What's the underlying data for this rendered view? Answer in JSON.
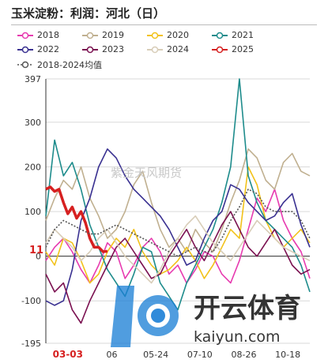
{
  "title": "玉米淀粉：利润：河北（日）",
  "legend_items": [
    "2018",
    "2019",
    "2020",
    "2021",
    "2022",
    "2023",
    "2024",
    "2025",
    "2018-2024均值"
  ],
  "watermark_center": "紫金天风期货",
  "watermark_logo": {
    "brand_cn": "开云体育",
    "brand_url": "kaiyun.com"
  },
  "latest_value_label": "11",
  "chart_data": {
    "type": "line",
    "title": "玉米淀粉：利润：河北（日）",
    "xlabel": "",
    "ylabel": "",
    "ylim": [
      -195,
      397
    ],
    "yticks": [
      397,
      300,
      200,
      100,
      0,
      -100,
      -195
    ],
    "xticks": [
      "03-03",
      "06",
      "05-24",
      "07-10",
      "08-26",
      "10-18"
    ],
    "xtick_highlight": "03-03",
    "xlim": [
      0,
      300
    ],
    "grid": "horizontal",
    "legend_position": "top",
    "series": [
      {
        "name": "2018",
        "color": "#e73bb0",
        "dashed": false,
        "x": [
          0,
          10,
          20,
          30,
          40,
          50,
          60,
          70,
          80,
          90,
          100,
          110,
          120,
          130,
          140,
          150,
          160,
          170,
          180,
          190,
          200,
          210,
          220,
          230,
          240,
          250,
          260,
          270,
          280,
          290,
          300
        ],
        "y": [
          -10,
          20,
          40,
          10,
          -30,
          -60,
          -20,
          30,
          10,
          -50,
          -20,
          20,
          40,
          10,
          -40,
          -20,
          -60,
          -30,
          10,
          0,
          -40,
          -60,
          -10,
          60,
          130,
          100,
          150,
          80,
          40,
          10,
          -50
        ]
      },
      {
        "name": "2019",
        "color": "#c0b090",
        "dashed": false,
        "x": [
          0,
          10,
          20,
          30,
          40,
          50,
          60,
          70,
          80,
          90,
          100,
          110,
          120,
          130,
          140,
          150,
          160,
          170,
          180,
          190,
          200,
          210,
          220,
          230,
          240,
          250,
          260,
          270,
          280,
          290,
          300
        ],
        "y": [
          80,
          130,
          170,
          150,
          200,
          130,
          90,
          40,
          60,
          100,
          160,
          190,
          120,
          60,
          20,
          40,
          10,
          60,
          30,
          10,
          60,
          120,
          170,
          240,
          220,
          170,
          150,
          210,
          230,
          190,
          180
        ]
      },
      {
        "name": "2020",
        "color": "#f2c21a",
        "dashed": false,
        "x": [
          0,
          10,
          20,
          30,
          40,
          50,
          60,
          70,
          80,
          90,
          100,
          110,
          120,
          130,
          140,
          150,
          160,
          170,
          180,
          190,
          200,
          210,
          220,
          230,
          240,
          250,
          260,
          270,
          280,
          290,
          300
        ],
        "y": [
          10,
          -20,
          40,
          30,
          -10,
          -60,
          -40,
          10,
          40,
          20,
          60,
          10,
          -20,
          -40,
          -30,
          -10,
          20,
          -10,
          -50,
          -20,
          20,
          60,
          40,
          200,
          160,
          80,
          40,
          20,
          40,
          60,
          30
        ]
      },
      {
        "name": "2021",
        "color": "#1e8c8c",
        "dashed": false,
        "x": [
          0,
          10,
          20,
          30,
          40,
          50,
          60,
          70,
          80,
          90,
          100,
          110,
          120,
          130,
          140,
          150,
          160,
          170,
          180,
          190,
          200,
          210,
          220,
          230,
          240,
          250,
          260,
          270,
          280,
          290,
          300
        ],
        "y": [
          90,
          260,
          180,
          210,
          150,
          70,
          20,
          -30,
          -60,
          -90,
          -40,
          20,
          10,
          -60,
          -90,
          -120,
          -60,
          -20,
          20,
          60,
          120,
          200,
          397,
          180,
          120,
          80,
          60,
          40,
          20,
          -20,
          -80
        ]
      },
      {
        "name": "2022",
        "color": "#3a3191",
        "dashed": false,
        "x": [
          0,
          10,
          20,
          30,
          40,
          50,
          60,
          70,
          80,
          90,
          100,
          110,
          120,
          130,
          140,
          150,
          160,
          170,
          180,
          190,
          200,
          210,
          220,
          230,
          240,
          250,
          260,
          270,
          280,
          290,
          300
        ],
        "y": [
          -100,
          -110,
          -100,
          -30,
          80,
          130,
          200,
          240,
          220,
          180,
          150,
          130,
          110,
          90,
          60,
          20,
          -20,
          -10,
          40,
          80,
          100,
          160,
          150,
          120,
          100,
          80,
          90,
          120,
          140,
          70,
          20
        ]
      },
      {
        "name": "2023",
        "color": "#7a1050",
        "dashed": false,
        "x": [
          0,
          10,
          20,
          30,
          40,
          50,
          60,
          70,
          80,
          90,
          100,
          110,
          120,
          130,
          140,
          150,
          160,
          170,
          180,
          190,
          200,
          210,
          220,
          230,
          240,
          250,
          260,
          270,
          280,
          290,
          300
        ],
        "y": [
          -40,
          -80,
          -60,
          -120,
          -150,
          -100,
          -60,
          -20,
          20,
          40,
          10,
          -20,
          -50,
          -40,
          0,
          30,
          60,
          20,
          -10,
          30,
          70,
          100,
          60,
          20,
          0,
          30,
          60,
          20,
          -20,
          -40,
          -30
        ]
      },
      {
        "name": "2024",
        "color": "#d8cdb8",
        "dashed": false,
        "x": [
          0,
          10,
          20,
          30,
          40,
          50,
          60,
          70,
          80,
          90,
          100,
          110,
          120,
          130,
          140,
          150,
          160,
          170,
          180,
          190,
          200,
          210,
          220,
          230,
          240,
          250,
          260,
          270,
          280,
          290,
          300
        ],
        "y": [
          30,
          60,
          40,
          20,
          -10,
          10,
          40,
          60,
          30,
          0,
          -20,
          -40,
          -60,
          -30,
          10,
          40,
          70,
          90,
          60,
          30,
          10,
          -10,
          20,
          50,
          80,
          60,
          40,
          20,
          10,
          0,
          -10
        ]
      },
      {
        "name": "2025",
        "color": "#d62020",
        "dashed": false,
        "x": [
          0,
          5,
          10,
          15,
          20,
          25,
          30,
          35,
          40,
          45,
          50,
          55,
          60,
          65,
          70
        ],
        "y": [
          150,
          155,
          145,
          150,
          120,
          95,
          110,
          85,
          100,
          75,
          40,
          20,
          20,
          10,
          11
        ]
      },
      {
        "name": "2018-2024均值",
        "color": "#555555",
        "dashed": true,
        "x": [
          0,
          10,
          20,
          30,
          40,
          50,
          60,
          70,
          80,
          90,
          100,
          110,
          120,
          130,
          140,
          150,
          160,
          170,
          180,
          190,
          200,
          210,
          220,
          230,
          240,
          250,
          260,
          270,
          280,
          290,
          300
        ],
        "y": [
          20,
          60,
          80,
          70,
          60,
          50,
          50,
          60,
          70,
          60,
          50,
          40,
          30,
          20,
          10,
          0,
          10,
          20,
          10,
          10,
          40,
          80,
          110,
          150,
          140,
          110,
          100,
          100,
          100,
          80,
          40
        ]
      }
    ]
  }
}
